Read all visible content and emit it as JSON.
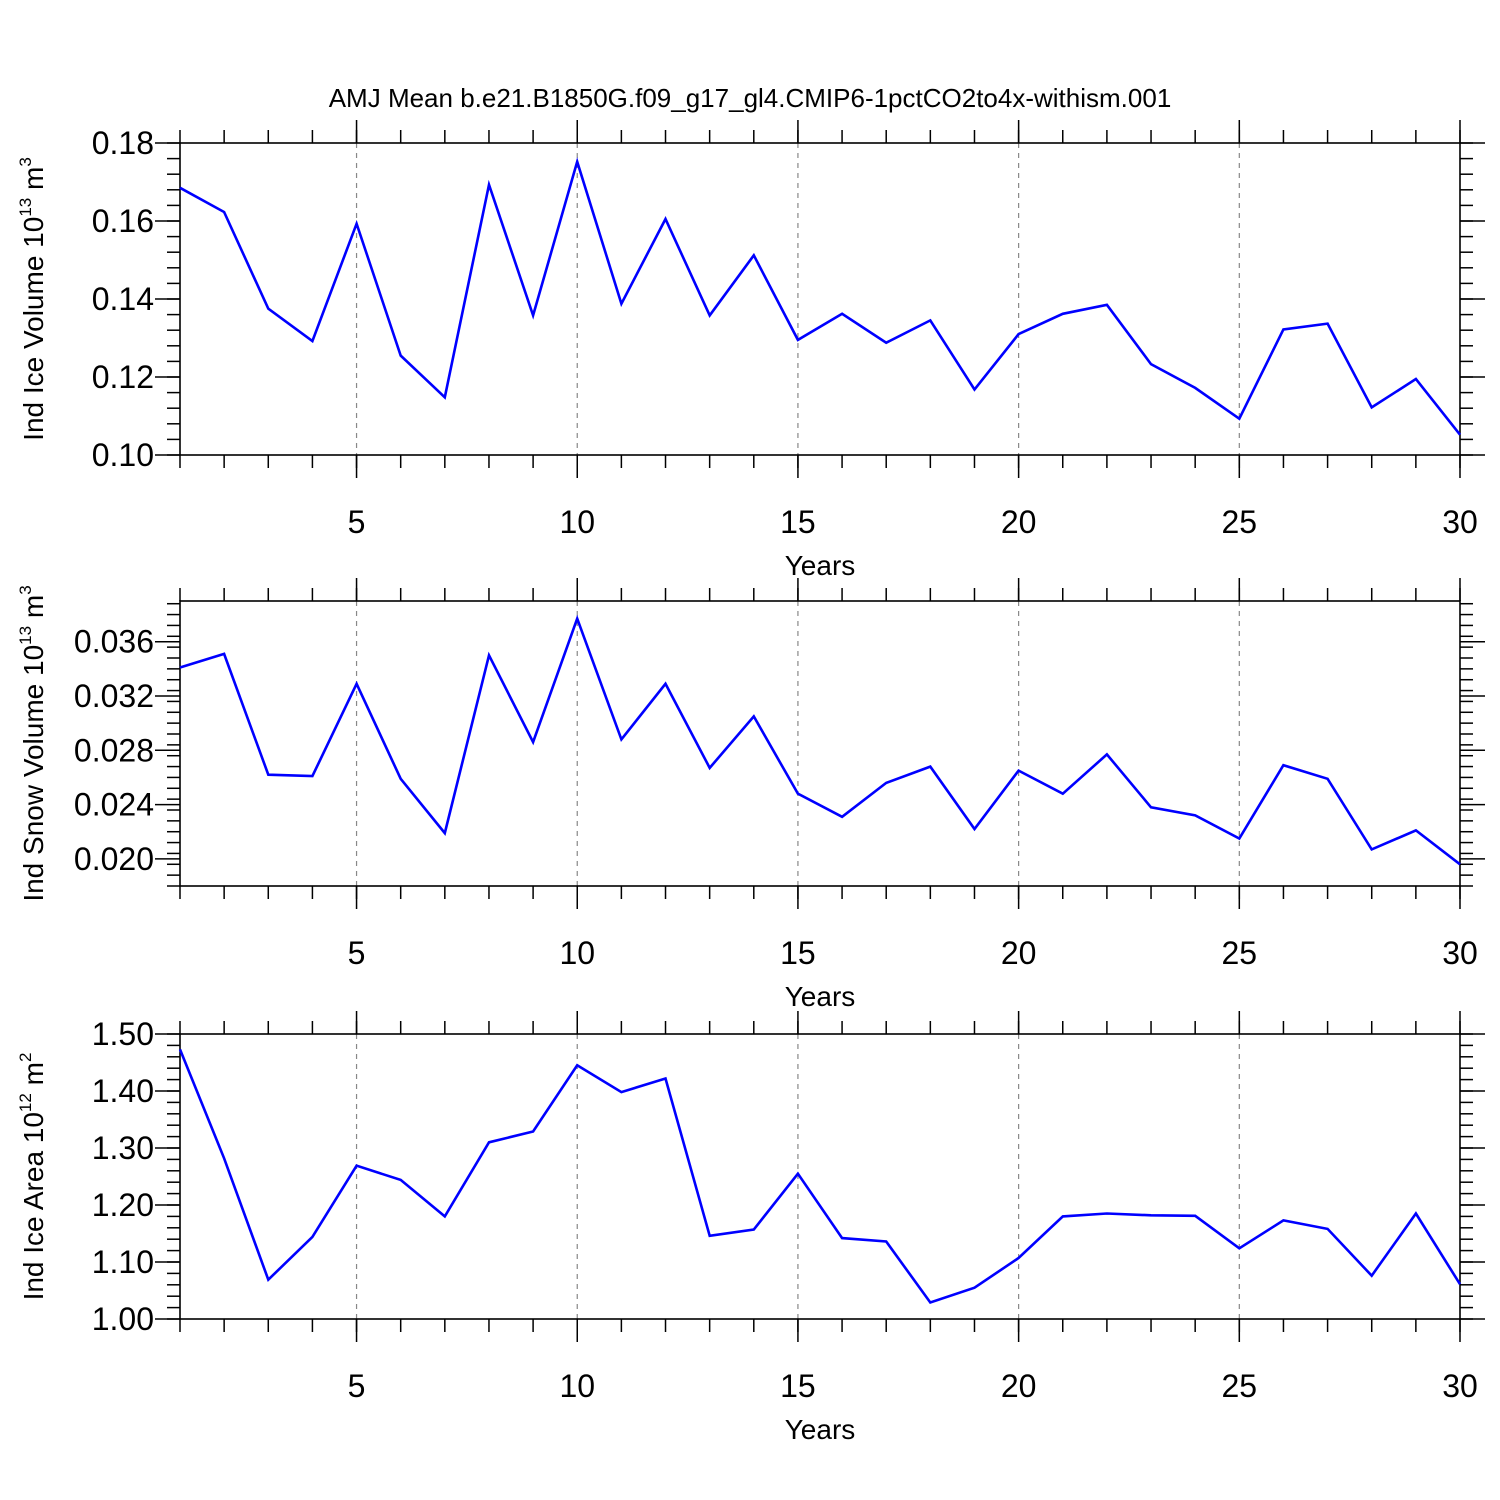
{
  "page_title": "AMJ Mean b.e21.B1850G.f09_g17_gl4.CMIP6-1pctCO2to4x-withism.001",
  "colors": {
    "line": "#0000ff",
    "axis": "#000000",
    "grid": "#888888"
  },
  "chart_data": [
    {
      "type": "line",
      "ylabel_base": "Ind Ice Volume 10",
      "ylabel_exp": "13",
      "ylabel_unit": " m",
      "ylabel_unit_exp": "3",
      "xlabel": "Years",
      "xlim": [
        1,
        30
      ],
      "ylim": [
        0.1,
        0.18
      ],
      "yticks": [
        "0.10",
        "0.12",
        "0.14",
        "0.16",
        "0.18"
      ],
      "xticks": [
        "5",
        "10",
        "15",
        "20",
        "25",
        "30"
      ],
      "x": [
        1,
        2,
        3,
        4,
        5,
        6,
        7,
        8,
        9,
        10,
        11,
        12,
        13,
        14,
        15,
        16,
        17,
        18,
        19,
        20,
        21,
        22,
        23,
        24,
        25,
        26,
        27,
        28,
        29,
        30
      ],
      "values": [
        0.1685,
        0.1623,
        0.1375,
        0.1292,
        0.1593,
        0.1255,
        0.1148,
        0.1693,
        0.1358,
        0.1752,
        0.1388,
        0.1605,
        0.1358,
        0.1512,
        0.1295,
        0.1362,
        0.1288,
        0.1345,
        0.1168,
        0.131,
        0.1362,
        0.1385,
        0.1233,
        0.1172,
        0.1093,
        0.1322,
        0.1337,
        0.1122,
        0.1195,
        0.1052
      ]
    },
    {
      "type": "line",
      "ylabel_base": "Ind Snow Volume 10",
      "ylabel_exp": "13",
      "ylabel_unit": " m",
      "ylabel_unit_exp": "3",
      "xlabel": "Years",
      "xlim": [
        1,
        30
      ],
      "ylim": [
        0.018,
        0.039
      ],
      "yticks": [
        "0.020",
        "0.024",
        "0.028",
        "0.032",
        "0.036"
      ],
      "xticks": [
        "5",
        "10",
        "15",
        "20",
        "25",
        "30"
      ],
      "x": [
        1,
        2,
        3,
        4,
        5,
        6,
        7,
        8,
        9,
        10,
        11,
        12,
        13,
        14,
        15,
        16,
        17,
        18,
        19,
        20,
        21,
        22,
        23,
        24,
        25,
        26,
        27,
        28,
        29,
        30
      ],
      "values": [
        0.0341,
        0.0351,
        0.0262,
        0.0261,
        0.0329,
        0.0259,
        0.0219,
        0.035,
        0.0286,
        0.0377,
        0.0288,
        0.0329,
        0.0267,
        0.0305,
        0.0248,
        0.0231,
        0.0256,
        0.0268,
        0.0222,
        0.0265,
        0.0248,
        0.0277,
        0.0238,
        0.0232,
        0.0215,
        0.0269,
        0.0259,
        0.0207,
        0.0221,
        0.0196
      ]
    },
    {
      "type": "line",
      "ylabel_base": "Ind Ice Area 10",
      "ylabel_exp": "12",
      "ylabel_unit": " m",
      "ylabel_unit_exp": "2",
      "xlabel": "Years",
      "xlim": [
        1,
        30
      ],
      "ylim": [
        1.0,
        1.5
      ],
      "yticks": [
        "1.00",
        "1.10",
        "1.20",
        "1.30",
        "1.40",
        "1.50"
      ],
      "xticks": [
        "5",
        "10",
        "15",
        "20",
        "25",
        "30"
      ],
      "x": [
        1,
        2,
        3,
        4,
        5,
        6,
        7,
        8,
        9,
        10,
        11,
        12,
        13,
        14,
        15,
        16,
        17,
        18,
        19,
        20,
        21,
        22,
        23,
        24,
        25,
        26,
        27,
        28,
        29,
        30
      ],
      "values": [
        1.473,
        1.282,
        1.069,
        1.144,
        1.269,
        1.244,
        1.18,
        1.31,
        1.329,
        1.445,
        1.398,
        1.422,
        1.146,
        1.157,
        1.255,
        1.142,
        1.136,
        1.029,
        1.055,
        1.107,
        1.18,
        1.185,
        1.182,
        1.181,
        1.124,
        1.173,
        1.158,
        1.076,
        1.185,
        1.061
      ]
    }
  ]
}
